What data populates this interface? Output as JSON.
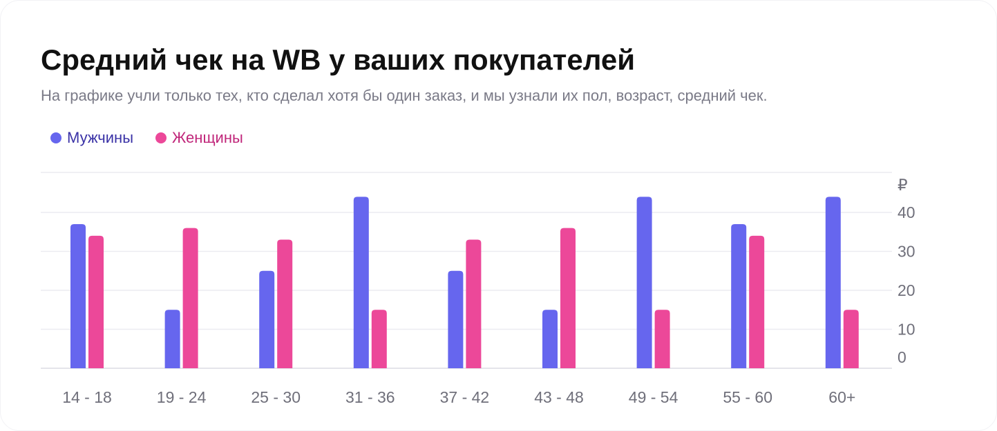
{
  "title": "Средний чек на WB у ваших покупателей",
  "subtitle": "На графике учли только тех, кто сделал хотя бы один заказ, и мы узнали их пол, возраст, средний чек.",
  "legend": [
    {
      "label": "Мужчины",
      "color": "#6666ee",
      "text_color": "#3a32a6"
    },
    {
      "label": "Женщины",
      "color": "#ec4899",
      "text_color": "#c0267a"
    }
  ],
  "chart_data": {
    "type": "bar",
    "title": "Средний чек на WB у ваших покупателей",
    "ylabel": "₽",
    "xlabel": "",
    "ylim": [
      0,
      45
    ],
    "yticks": [
      0,
      10,
      20,
      30,
      40
    ],
    "y_axis_position": "right",
    "grid": true,
    "legend_position": "top-left",
    "categories": [
      "14 - 18",
      "19 - 24",
      "25 - 30",
      "31 - 36",
      "37 - 42",
      "43 - 48",
      "49 - 54",
      "55 - 60",
      "60+"
    ],
    "series": [
      {
        "name": "Мужчины",
        "color": "#6666ee",
        "values": [
          37,
          15,
          25,
          44,
          25,
          15,
          44,
          37,
          44
        ]
      },
      {
        "name": "Женщины",
        "color": "#ec4899",
        "values": [
          34,
          36,
          33,
          15,
          33,
          36,
          15,
          34,
          15
        ]
      }
    ]
  }
}
